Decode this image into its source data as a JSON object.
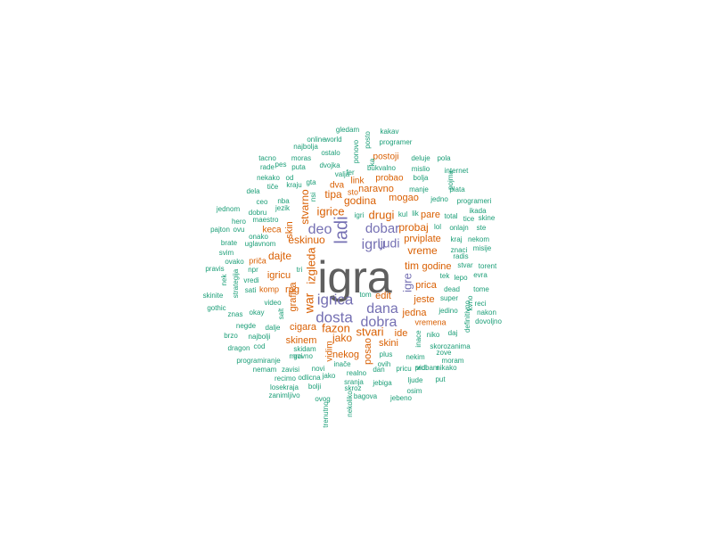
{
  "colors": {
    "background": "#ffffff",
    "top": "#5f5f5f",
    "purple": "#7570b3",
    "orange": "#d95f02",
    "teal": "#1b9e77"
  },
  "words": [
    {
      "t": "igra",
      "c": "top"
    },
    {
      "t": "ladi",
      "c": "purple"
    },
    {
      "t": "igru",
      "c": "purple"
    },
    {
      "t": "ljudi",
      "c": "purple"
    },
    {
      "t": "dobar",
      "c": "purple"
    },
    {
      "t": "deo",
      "c": "purple"
    },
    {
      "t": "igrica",
      "c": "purple"
    },
    {
      "t": "dana",
      "c": "purple"
    },
    {
      "t": "dosta",
      "c": "purple"
    },
    {
      "t": "dobra",
      "c": "purple"
    },
    {
      "t": "igre",
      "c": "purple"
    },
    {
      "t": "igrice",
      "c": "orange"
    },
    {
      "t": "drugi",
      "c": "orange"
    },
    {
      "t": "godina",
      "c": "orange"
    },
    {
      "t": "mogao",
      "c": "orange"
    },
    {
      "t": "probaj",
      "c": "orange"
    },
    {
      "t": "eskinuo",
      "c": "orange"
    },
    {
      "t": "stvarno",
      "c": "orange"
    },
    {
      "t": "skin",
      "c": "orange"
    },
    {
      "t": "dajte",
      "c": "orange"
    },
    {
      "t": "vreme",
      "c": "orange"
    },
    {
      "t": "tim",
      "c": "orange"
    },
    {
      "t": "war",
      "c": "orange"
    },
    {
      "t": "izgleda",
      "c": "orange"
    },
    {
      "t": "prica",
      "c": "orange"
    },
    {
      "t": "jeste",
      "c": "orange"
    },
    {
      "t": "fazon",
      "c": "orange"
    },
    {
      "t": "stvari",
      "c": "orange"
    },
    {
      "t": "jako",
      "c": "orange"
    },
    {
      "t": "skinem",
      "c": "orange"
    },
    {
      "t": "cigara",
      "c": "orange"
    },
    {
      "t": "vidim",
      "c": "orange"
    },
    {
      "t": "nekog",
      "c": "orange"
    },
    {
      "t": "posao",
      "c": "orange"
    },
    {
      "t": "ide",
      "c": "orange"
    },
    {
      "t": "skini",
      "c": "orange"
    },
    {
      "t": "tipa",
      "c": "orange"
    },
    {
      "t": "naravno",
      "c": "orange"
    },
    {
      "t": "grafika",
      "c": "orange"
    },
    {
      "t": "prviplate",
      "c": "orange"
    },
    {
      "t": "pare",
      "c": "orange"
    },
    {
      "t": "godine",
      "c": "orange"
    },
    {
      "t": "jedna",
      "c": "orange"
    },
    {
      "t": "rpg",
      "c": "orange"
    },
    {
      "t": "igricu",
      "c": "orange"
    },
    {
      "t": "dva",
      "c": "orange"
    },
    {
      "t": "link",
      "c": "orange"
    },
    {
      "t": "edit",
      "c": "orange"
    },
    {
      "t": "komp",
      "c": "orange"
    },
    {
      "t": "vremena",
      "c": "orange"
    },
    {
      "t": "keca",
      "c": "orange"
    },
    {
      "t": "priča",
      "c": "orange"
    },
    {
      "t": "probao",
      "c": "orange"
    },
    {
      "t": "postoji",
      "c": "orange"
    },
    {
      "t": "sto",
      "c": "orange"
    },
    {
      "t": "gledam",
      "c": "teal"
    },
    {
      "t": "posto",
      "c": "teal"
    },
    {
      "t": "kakav",
      "c": "teal"
    },
    {
      "t": "online",
      "c": "teal"
    },
    {
      "t": "world",
      "c": "teal"
    },
    {
      "t": "ponovo",
      "c": "teal"
    },
    {
      "t": "programer",
      "c": "teal"
    },
    {
      "t": "najbolja",
      "c": "teal"
    },
    {
      "t": "ostalo",
      "c": "teal"
    },
    {
      "t": "tacno",
      "c": "teal"
    },
    {
      "t": "moras",
      "c": "teal"
    },
    {
      "t": "ka",
      "c": "teal"
    },
    {
      "t": "deluje",
      "c": "teal"
    },
    {
      "t": "pola",
      "c": "teal"
    },
    {
      "t": "rade",
      "c": "teal"
    },
    {
      "t": "pes",
      "c": "teal"
    },
    {
      "t": "puta",
      "c": "teal"
    },
    {
      "t": "dvojka",
      "c": "teal"
    },
    {
      "t": "bukvalno",
      "c": "teal"
    },
    {
      "t": "mislio",
      "c": "teal"
    },
    {
      "t": "internet",
      "c": "teal"
    },
    {
      "t": "nekako",
      "c": "teal"
    },
    {
      "t": "od",
      "c": "teal"
    },
    {
      "t": "valja",
      "c": "teal"
    },
    {
      "t": "fer",
      "c": "teal"
    },
    {
      "t": "bolja",
      "c": "teal"
    },
    {
      "t": "pojma",
      "c": "teal"
    },
    {
      "t": "tiče",
      "c": "teal"
    },
    {
      "t": "kraju",
      "c": "teal"
    },
    {
      "t": "gta",
      "c": "teal"
    },
    {
      "t": "manje",
      "c": "teal"
    },
    {
      "t": "plata",
      "c": "teal"
    },
    {
      "t": "dela",
      "c": "teal"
    },
    {
      "t": "nsi",
      "c": "teal"
    },
    {
      "t": "jedno",
      "c": "teal"
    },
    {
      "t": "programeri",
      "c": "teal"
    },
    {
      "t": "ceo",
      "c": "teal"
    },
    {
      "t": "nba",
      "c": "teal"
    },
    {
      "t": "jednom",
      "c": "teal"
    },
    {
      "t": "jezik",
      "c": "teal"
    },
    {
      "t": "dobru",
      "c": "teal"
    },
    {
      "t": "igri",
      "c": "teal"
    },
    {
      "t": "kul",
      "c": "teal"
    },
    {
      "t": "lik",
      "c": "teal"
    },
    {
      "t": "total",
      "c": "teal"
    },
    {
      "t": "ikada",
      "c": "teal"
    },
    {
      "t": "hero",
      "c": "teal"
    },
    {
      "t": "maestro",
      "c": "teal"
    },
    {
      "t": "tice",
      "c": "teal"
    },
    {
      "t": "skine",
      "c": "teal"
    },
    {
      "t": "pajton",
      "c": "teal"
    },
    {
      "t": "ovu",
      "c": "teal"
    },
    {
      "t": "lol",
      "c": "teal"
    },
    {
      "t": "onlajn",
      "c": "teal"
    },
    {
      "t": "ste",
      "c": "teal"
    },
    {
      "t": "onako",
      "c": "teal"
    },
    {
      "t": "kraj",
      "c": "teal"
    },
    {
      "t": "nekom",
      "c": "teal"
    },
    {
      "t": "brate",
      "c": "teal"
    },
    {
      "t": "uglavnom",
      "c": "teal"
    },
    {
      "t": "znaci",
      "c": "teal"
    },
    {
      "t": "misije",
      "c": "teal"
    },
    {
      "t": "svim",
      "c": "teal"
    },
    {
      "t": "radis",
      "c": "teal"
    },
    {
      "t": "ovako",
      "c": "teal"
    },
    {
      "t": "stvar",
      "c": "teal"
    },
    {
      "t": "torent",
      "c": "teal"
    },
    {
      "t": "pravis",
      "c": "teal"
    },
    {
      "t": "npr",
      "c": "teal"
    },
    {
      "t": "tri",
      "c": "teal"
    },
    {
      "t": "tek",
      "c": "teal"
    },
    {
      "t": "lepo",
      "c": "teal"
    },
    {
      "t": "evra",
      "c": "teal"
    },
    {
      "t": "nek",
      "c": "teal"
    },
    {
      "t": "vredi",
      "c": "teal"
    },
    {
      "t": "strategija",
      "c": "teal"
    },
    {
      "t": "dead",
      "c": "teal"
    },
    {
      "t": "tome",
      "c": "teal"
    },
    {
      "t": "sati",
      "c": "teal"
    },
    {
      "t": "skinite",
      "c": "teal"
    },
    {
      "t": "video",
      "c": "teal"
    },
    {
      "t": "tom",
      "c": "teal"
    },
    {
      "t": "super",
      "c": "teal"
    },
    {
      "t": "reci",
      "c": "teal"
    },
    {
      "t": "kvno",
      "c": "teal"
    },
    {
      "t": "gothic",
      "c": "teal"
    },
    {
      "t": "znas",
      "c": "teal"
    },
    {
      "t": "okay",
      "c": "teal"
    },
    {
      "t": "salt",
      "c": "teal"
    },
    {
      "t": "nakon",
      "c": "teal"
    },
    {
      "t": "jedino",
      "c": "teal"
    },
    {
      "t": "definitivno",
      "c": "teal"
    },
    {
      "t": "negde",
      "c": "teal"
    },
    {
      "t": "dalje",
      "c": "teal"
    },
    {
      "t": "dovoljno",
      "c": "teal"
    },
    {
      "t": "brzo",
      "c": "teal"
    },
    {
      "t": "najbolji",
      "c": "teal"
    },
    {
      "t": "niko",
      "c": "teal"
    },
    {
      "t": "daj",
      "c": "teal"
    },
    {
      "t": "dragon",
      "c": "teal"
    },
    {
      "t": "cod",
      "c": "teal"
    },
    {
      "t": "skidam",
      "c": "teal"
    },
    {
      "t": "inace",
      "c": "teal"
    },
    {
      "t": "skorozanima",
      "c": "teal"
    },
    {
      "t": "mrzi",
      "c": "teal"
    },
    {
      "t": "plus",
      "c": "teal"
    },
    {
      "t": "zove",
      "c": "teal"
    },
    {
      "t": "programiranje",
      "c": "teal"
    },
    {
      "t": "govno",
      "c": "teal"
    },
    {
      "t": "nekim",
      "c": "teal"
    },
    {
      "t": "moram",
      "c": "teal"
    },
    {
      "t": "nemam",
      "c": "teal"
    },
    {
      "t": "zavisi",
      "c": "teal"
    },
    {
      "t": "novi",
      "c": "teal"
    },
    {
      "t": "inače",
      "c": "teal"
    },
    {
      "t": "ovih",
      "c": "teal"
    },
    {
      "t": "vidi",
      "c": "teal"
    },
    {
      "t": "nikako",
      "c": "teal"
    },
    {
      "t": "recimo",
      "c": "teal"
    },
    {
      "t": "odlicna",
      "c": "teal"
    },
    {
      "t": "jako",
      "c": "teal"
    },
    {
      "t": "realno",
      "c": "teal"
    },
    {
      "t": "dan",
      "c": "teal"
    },
    {
      "t": "pricu",
      "c": "teal"
    },
    {
      "t": "probam",
      "c": "teal"
    },
    {
      "t": "losekraja",
      "c": "teal"
    },
    {
      "t": "bolji",
      "c": "teal"
    },
    {
      "t": "sranja",
      "c": "teal"
    },
    {
      "t": "jebiga",
      "c": "teal"
    },
    {
      "t": "ljude",
      "c": "teal"
    },
    {
      "t": "put",
      "c": "teal"
    },
    {
      "t": "skroz",
      "c": "teal"
    },
    {
      "t": "osim",
      "c": "teal"
    },
    {
      "t": "zanimljivo",
      "c": "teal"
    },
    {
      "t": "ovog",
      "c": "teal"
    },
    {
      "t": "bagova",
      "c": "teal"
    },
    {
      "t": "jebeno",
      "c": "teal"
    },
    {
      "t": "trenutno",
      "c": "teal"
    },
    {
      "t": "nekoliko",
      "c": "teal"
    }
  ]
}
